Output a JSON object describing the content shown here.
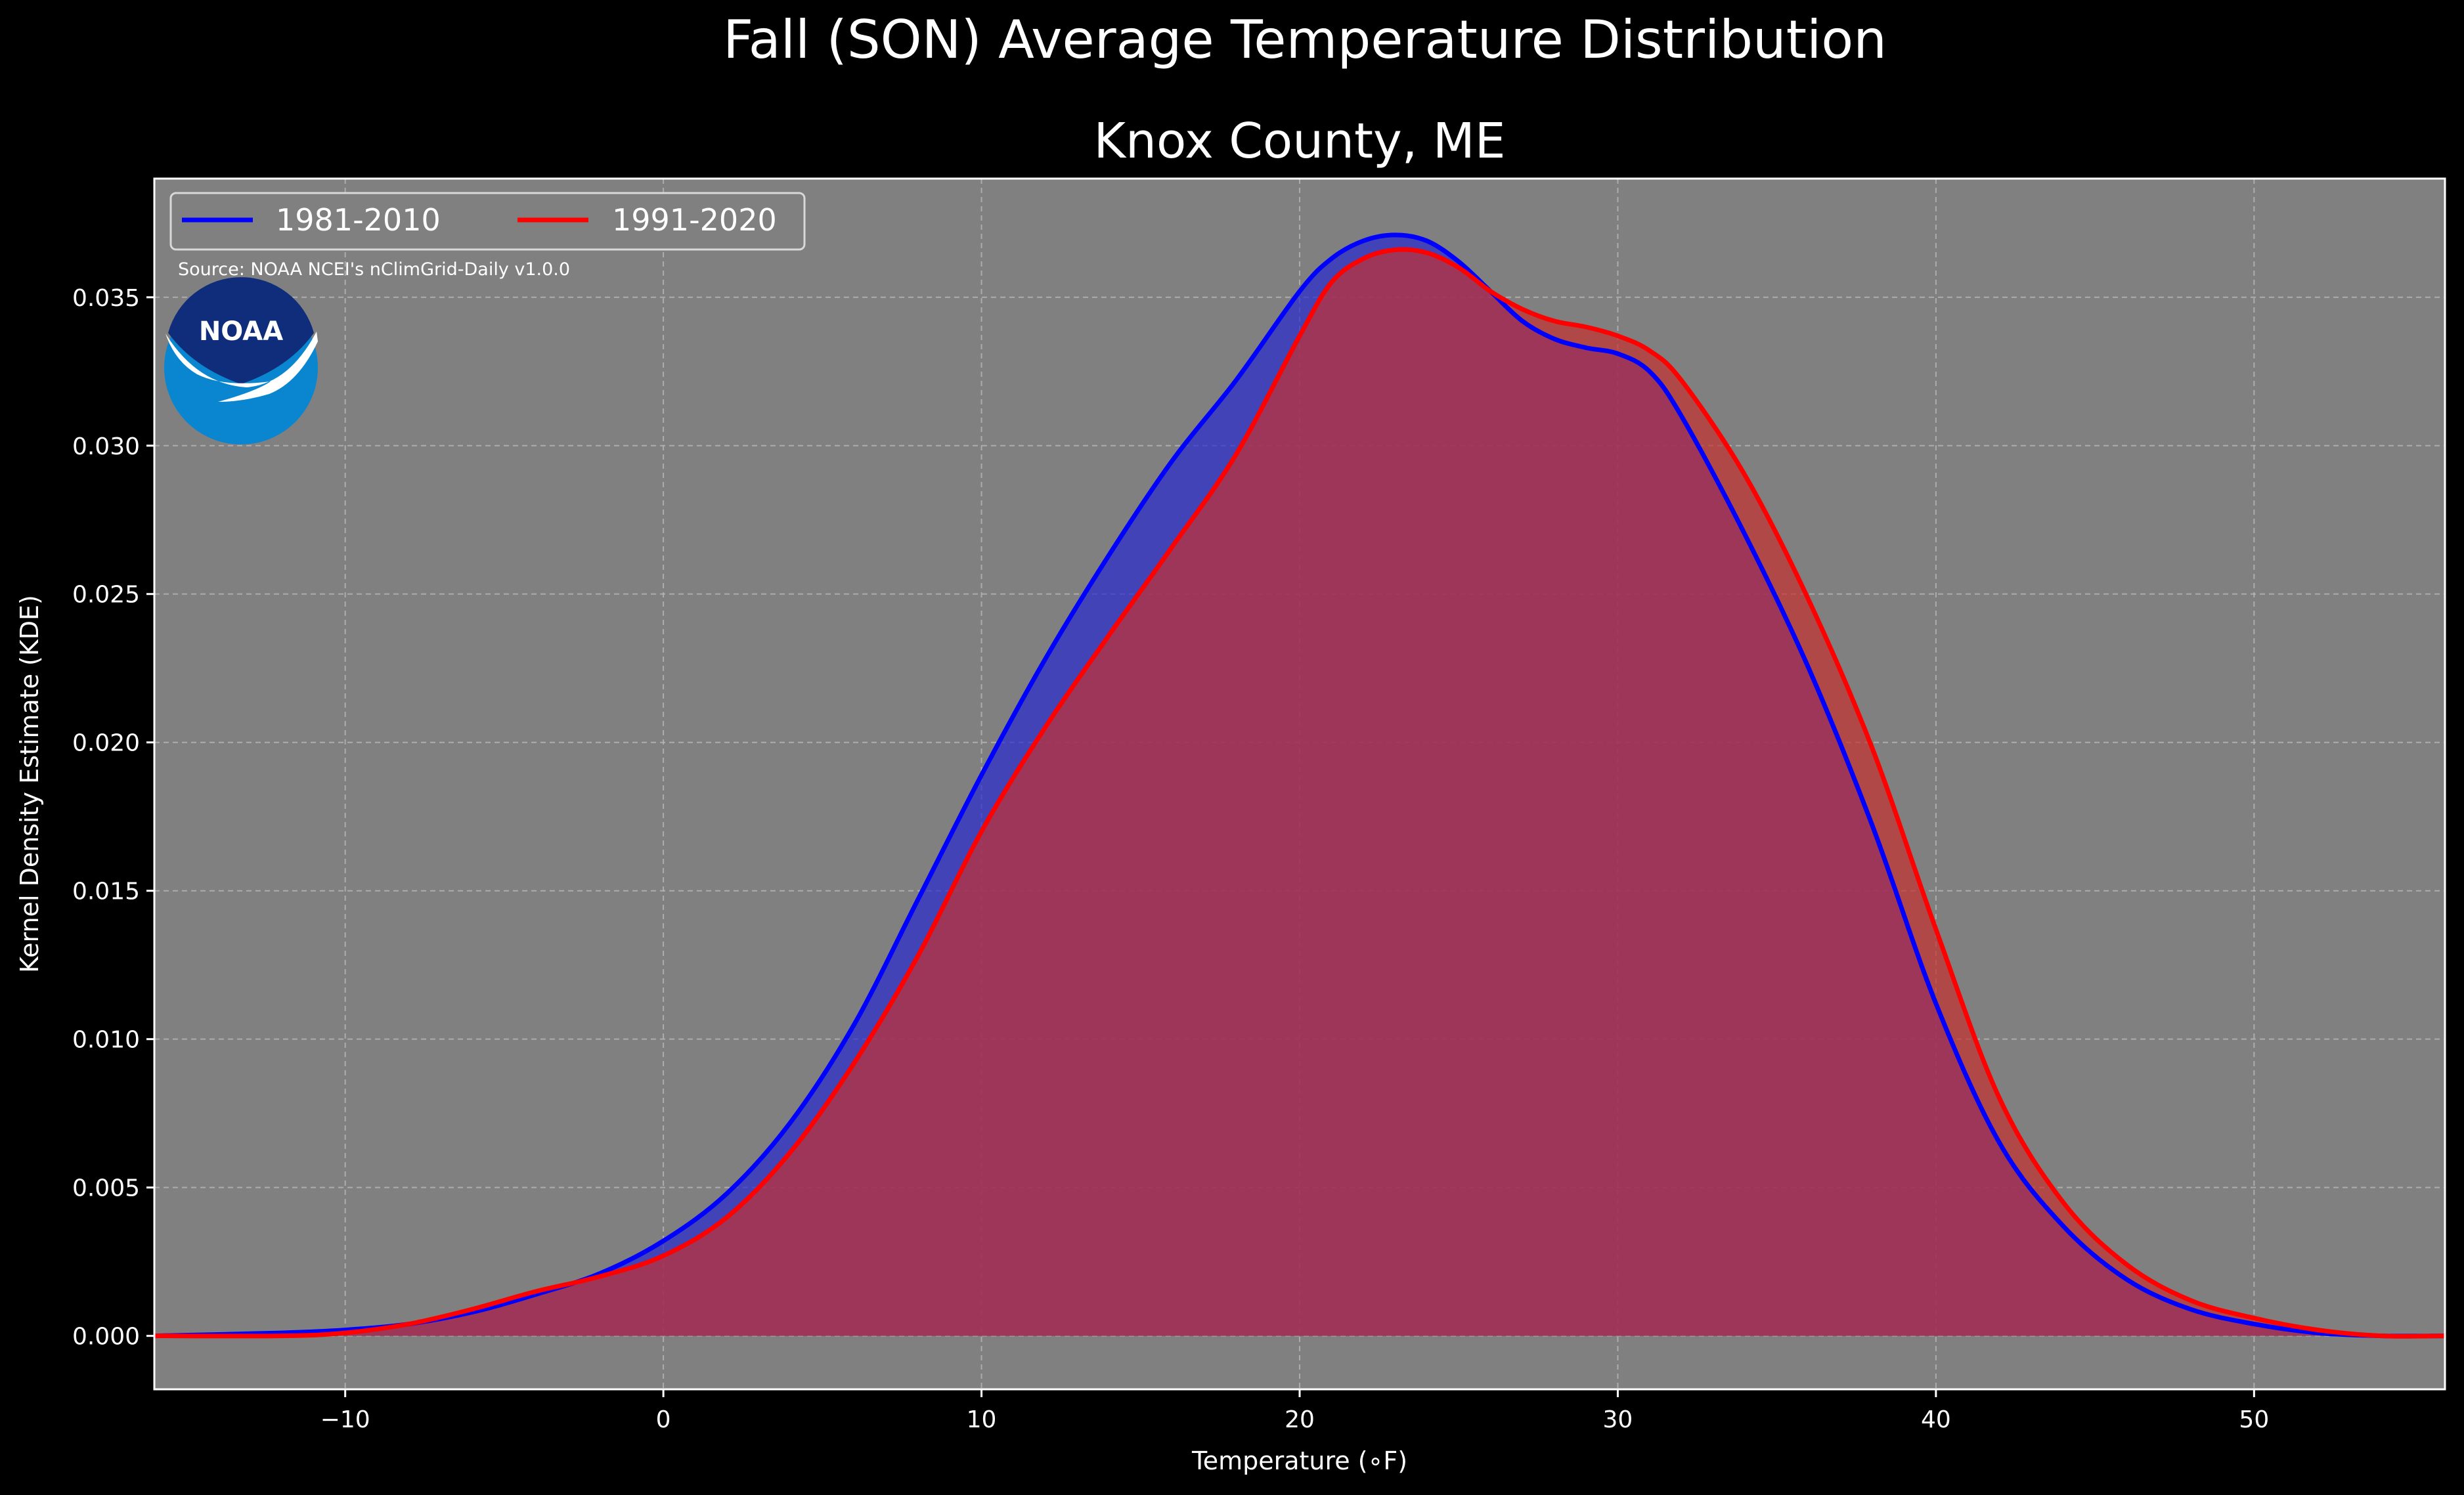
{
  "chart_data": {
    "type": "area",
    "suptitle": "Fall (SON) Average Temperature Distribution",
    "title": "Knox County, ME",
    "xlabel": "Temperature (∘F)",
    "ylabel": "Kernel Density Estimate (KDE)",
    "xlim": [
      -16,
      56
    ],
    "ylim": [
      -0.0018,
      0.039
    ],
    "xticks": [
      -10,
      0,
      10,
      20,
      30,
      40,
      50
    ],
    "xtick_labels": [
      "−10",
      "0",
      "10",
      "20",
      "30",
      "40",
      "50"
    ],
    "yticks": [
      0.0,
      0.005,
      0.01,
      0.015,
      0.02,
      0.025,
      0.03,
      0.035
    ],
    "ytick_labels": [
      "0.000",
      "0.005",
      "0.010",
      "0.015",
      "0.020",
      "0.025",
      "0.030",
      "0.035"
    ],
    "grid": true,
    "legend_position": "top-left",
    "source_note": "Source: NOAA NCEI's nClimGrid-Daily v1.0.0",
    "logo_text": "NOAA",
    "colors": {
      "figure_background": "#000000",
      "axes_background": "#808080",
      "text": "#ffffff"
    },
    "series": [
      {
        "name": "1981-2010",
        "color": "#0000ff",
        "fill": "#2a2ad0",
        "x": [
          -16,
          -12,
          -10,
          -8,
          -6,
          -4,
          -2,
          0,
          2,
          4,
          6,
          8,
          10,
          12,
          14,
          16,
          18,
          20,
          21,
          22,
          23,
          24,
          25,
          26,
          27,
          28,
          29,
          30,
          31,
          32,
          34,
          36,
          38,
          40,
          42,
          44,
          46,
          48,
          50,
          52,
          54,
          56
        ],
        "y": [
          0.0,
          0.0001,
          0.0002,
          0.0004,
          0.0008,
          0.0014,
          0.0021,
          0.0032,
          0.0048,
          0.0072,
          0.0105,
          0.0147,
          0.0189,
          0.0228,
          0.0263,
          0.0295,
          0.0322,
          0.0352,
          0.0363,
          0.0369,
          0.0371,
          0.0369,
          0.0362,
          0.0352,
          0.0342,
          0.0336,
          0.0333,
          0.0331,
          0.0325,
          0.031,
          0.027,
          0.0225,
          0.0172,
          0.0112,
          0.0065,
          0.0037,
          0.0019,
          0.0009,
          0.0004,
          0.0001,
          0.0,
          0.0
        ]
      },
      {
        "name": "1991-2020",
        "color": "#ff0000",
        "fill": "#c43030",
        "x": [
          -16,
          -12,
          -10,
          -8,
          -6,
          -4,
          -2,
          0,
          2,
          4,
          6,
          8,
          10,
          12,
          14,
          16,
          18,
          20,
          21,
          22,
          23,
          24,
          25,
          26,
          27,
          28,
          29,
          30,
          31,
          32,
          34,
          36,
          38,
          40,
          42,
          44,
          46,
          48,
          50,
          52,
          54,
          56
        ],
        "y": [
          0.0,
          0.0,
          0.0001,
          0.0004,
          0.0009,
          0.0015,
          0.002,
          0.0027,
          0.004,
          0.0062,
          0.0092,
          0.0128,
          0.017,
          0.0205,
          0.0236,
          0.0266,
          0.0297,
          0.0337,
          0.0355,
          0.0363,
          0.0366,
          0.0365,
          0.036,
          0.0352,
          0.0346,
          0.0342,
          0.034,
          0.0337,
          0.0332,
          0.0322,
          0.029,
          0.0248,
          0.0198,
          0.0137,
          0.008,
          0.0045,
          0.0024,
          0.0012,
          0.0006,
          0.0002,
          0.0,
          0.0
        ]
      }
    ]
  }
}
